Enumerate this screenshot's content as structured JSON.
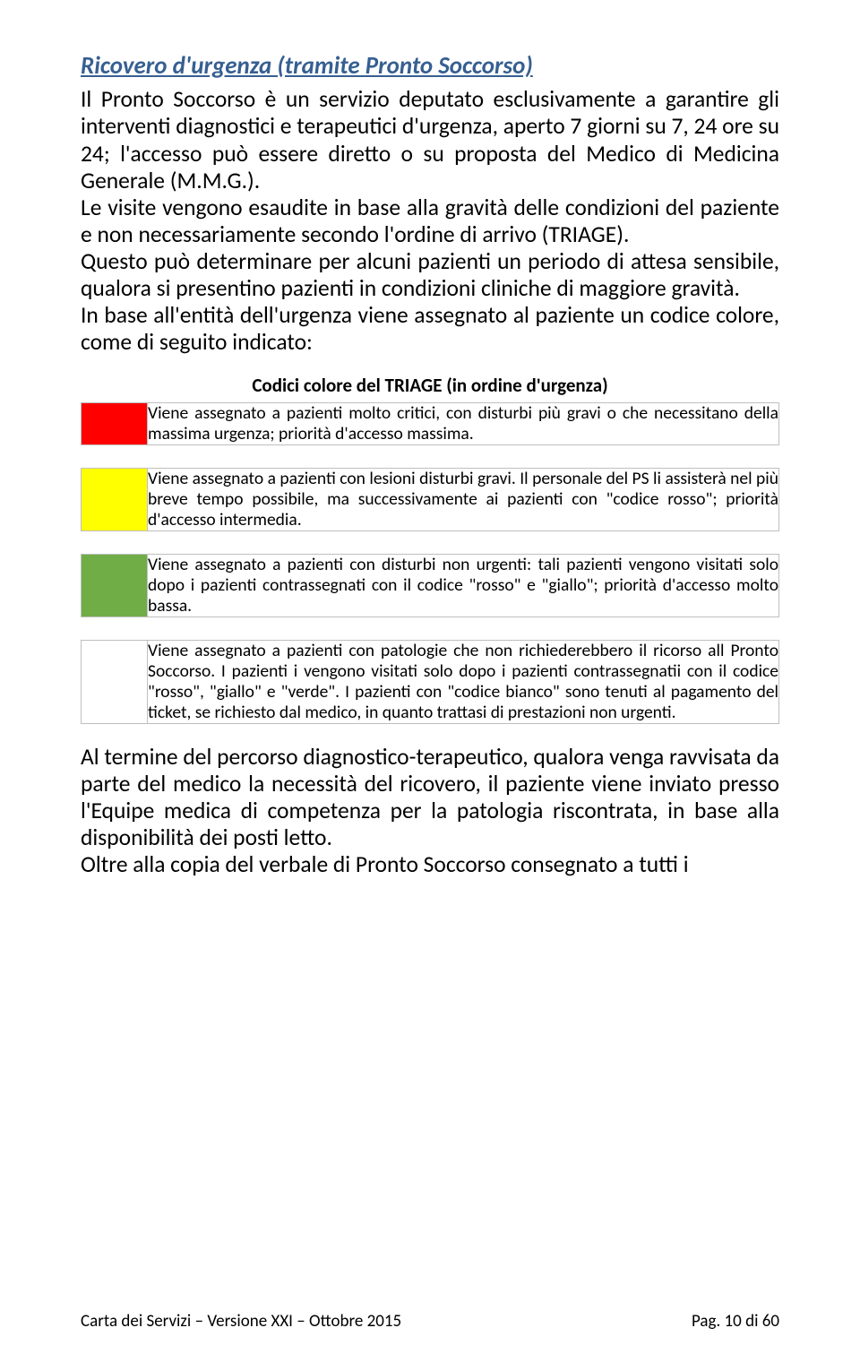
{
  "title": "Ricovero d'urgenza (tramite Pronto Soccorso)",
  "intro": "Il Pronto Soccorso è un servizio deputato esclusivamente a garantire gli interventi diagnostici e terapeutici d'urgenza, aperto 7 giorni su 7, 24 ore su 24; l'accesso può essere diretto o su proposta del Medico di Medicina Generale (M.M.G.).\nLe visite vengono esaudite in base alla gravità delle condizioni del paziente e non necessariamente secondo l'ordine di arrivo (TRIAGE).\nQuesto può determinare per alcuni pazienti un periodo di attesa sensibile, qualora si presentino pazienti in condizioni cliniche di maggiore gravità.\nIn base all'entità dell'urgenza viene assegnato al paziente un codice colore, come di seguito indicato:",
  "tableHeading": "Codici colore del TRIAGE (in ordine d'urgenza)",
  "rows": [
    {
      "color": "#ff0000",
      "text": "Viene assegnato a pazienti molto critici, con disturbi più gravi o che necessitano della massima urgenza; priorità d'accesso massima."
    },
    {
      "color": "#ffff00",
      "text": "Viene assegnato a pazienti con lesioni disturbi gravi. Il personale del PS li assisterà nel più breve tempo possibile, ma successivamente ai pazienti con \"codice rosso\"; priorità d'accesso intermedia."
    },
    {
      "color": "#70ad47",
      "text": "Viene assegnato a pazienti con disturbi non urgenti: tali pazienti vengono visitati solo dopo i pazienti contrassegnati con il codice \"rosso\" e \"giallo\"; priorità d'accesso molto bassa."
    },
    {
      "color": "#ffffff",
      "text": "Viene assegnato a pazienti con patologie che non richiederebbero il ricorso all Pronto Soccorso. I pazienti i vengono visitati solo dopo i pazienti contrassegnatii con il codice \"rosso\", \"giallo\" e \"verde\". I pazienti con \"codice bianco\" sono tenuti al pagamento del ticket, se richiesto dal medico, in quanto trattasi di prestazioni non urgenti."
    }
  ],
  "afterTable": "Al termine del percorso diagnostico-terapeutico, qualora venga ravvisata da parte del medico la necessità del ricovero, il paziente viene inviato presso l'Equipe medica di competenza per la patologia riscontrata, in base alla disponibilità dei posti letto.\nOltre alla copia del verbale di Pronto Soccorso consegnato a tutti i",
  "footerLeft": "Carta dei Servizi – Versione XXI – Ottobre 2015",
  "footerRight": "Pag. 10 di 60"
}
